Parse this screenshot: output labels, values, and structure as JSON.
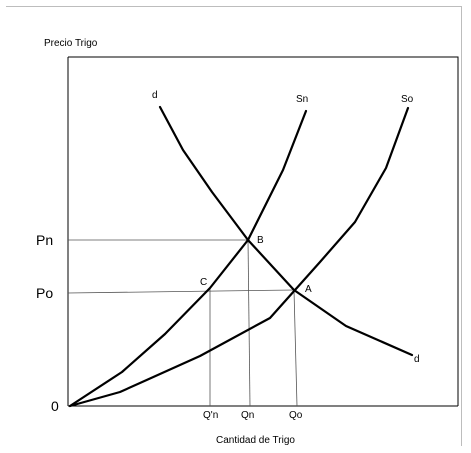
{
  "axes": {
    "y_title": "Precio Trigo",
    "x_title": "Cantidad de Trigo",
    "origin": "0",
    "price_ticks": [
      "Pn",
      "Po"
    ],
    "quantity_ticks": [
      "Q'n",
      "Qn",
      "Qo"
    ]
  },
  "curves": {
    "demand_top": "d",
    "demand_bottom": "d",
    "supply_new": "Sn",
    "supply_old": "So"
  },
  "points": {
    "A": "A",
    "B": "B",
    "C": "C"
  }
}
